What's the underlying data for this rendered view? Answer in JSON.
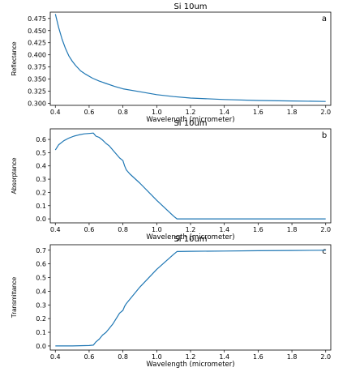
{
  "chart_data": [
    {
      "type": "line",
      "panel_label": "a",
      "title": "Si 10um",
      "xlabel": "Wavelength (micrometer)",
      "ylabel": "Reflectance",
      "xlim": [
        0.37,
        2.03
      ],
      "ylim": [
        0.296,
        0.488
      ],
      "xticks": [
        "0.4",
        "0.6",
        "0.8",
        "1.0",
        "1.2",
        "1.4",
        "1.6",
        "1.8",
        "2.0"
      ],
      "yticks": [
        "0.300",
        "0.325",
        "0.350",
        "0.375",
        "0.400",
        "0.425",
        "0.450",
        "0.475"
      ],
      "color": "#1f77b4",
      "series": [
        {
          "x": [
            0.4,
            0.42,
            0.44,
            0.46,
            0.48,
            0.5,
            0.52,
            0.55,
            0.58,
            0.62,
            0.66,
            0.7,
            0.75,
            0.8,
            0.9,
            1.0,
            1.1,
            1.2,
            1.4,
            1.6,
            1.8,
            2.0
          ],
          "y": [
            0.484,
            0.456,
            0.432,
            0.413,
            0.398,
            0.387,
            0.378,
            0.367,
            0.36,
            0.352,
            0.346,
            0.341,
            0.335,
            0.33,
            0.324,
            0.318,
            0.314,
            0.311,
            0.308,
            0.306,
            0.305,
            0.304
          ]
        }
      ]
    },
    {
      "type": "line",
      "panel_label": "b",
      "title": "Si 10um",
      "xlabel": "Wavelength (micrometer)",
      "ylabel": "Absorptance",
      "xlim": [
        0.37,
        2.03
      ],
      "ylim": [
        -0.03,
        0.68
      ],
      "xticks": [
        "0.4",
        "0.6",
        "0.8",
        "1.0",
        "1.2",
        "1.4",
        "1.6",
        "1.8",
        "2.0"
      ],
      "yticks": [
        "0.0",
        "0.1",
        "0.2",
        "0.3",
        "0.4",
        "0.5",
        "0.6"
      ],
      "color": "#1f77b4",
      "series": [
        {
          "x": [
            0.4,
            0.42,
            0.45,
            0.48,
            0.51,
            0.54,
            0.57,
            0.6,
            0.625,
            0.64,
            0.66,
            0.68,
            0.7,
            0.72,
            0.74,
            0.76,
            0.78,
            0.8,
            0.81,
            0.82,
            0.84,
            0.9,
            1.0,
            1.1,
            1.12,
            1.2,
            1.4,
            1.6,
            1.8,
            2.0
          ],
          "y": [
            0.52,
            0.56,
            0.59,
            0.61,
            0.625,
            0.635,
            0.642,
            0.645,
            0.648,
            0.625,
            0.615,
            0.595,
            0.57,
            0.55,
            0.52,
            0.49,
            0.46,
            0.44,
            0.4,
            0.37,
            0.34,
            0.27,
            0.14,
            0.02,
            0.0,
            0.0,
            0.0,
            0.0,
            0.0,
            0.0
          ]
        }
      ]
    },
    {
      "type": "line",
      "panel_label": "c",
      "title": "Si 10um",
      "xlabel": "Wavelength (micrometer)",
      "ylabel": "Transmittance",
      "xlim": [
        0.37,
        2.03
      ],
      "ylim": [
        -0.03,
        0.74
      ],
      "xticks": [
        "0.4",
        "0.6",
        "0.8",
        "1.0",
        "1.2",
        "1.4",
        "1.6",
        "1.8",
        "2.0"
      ],
      "yticks": [
        "0.0",
        "0.1",
        "0.2",
        "0.3",
        "0.4",
        "0.5",
        "0.6",
        "0.7"
      ],
      "color": "#1f77b4",
      "series": [
        {
          "x": [
            0.4,
            0.5,
            0.6,
            0.625,
            0.64,
            0.66,
            0.68,
            0.7,
            0.72,
            0.74,
            0.76,
            0.78,
            0.8,
            0.81,
            0.82,
            0.84,
            0.9,
            1.0,
            1.1,
            1.12,
            1.2,
            1.4,
            1.6,
            1.8,
            2.0
          ],
          "y": [
            0.0,
            0.0,
            0.003,
            0.006,
            0.03,
            0.05,
            0.08,
            0.1,
            0.13,
            0.16,
            0.2,
            0.24,
            0.26,
            0.29,
            0.31,
            0.34,
            0.43,
            0.56,
            0.67,
            0.69,
            0.692,
            0.694,
            0.696,
            0.698,
            0.7
          ]
        }
      ]
    }
  ]
}
